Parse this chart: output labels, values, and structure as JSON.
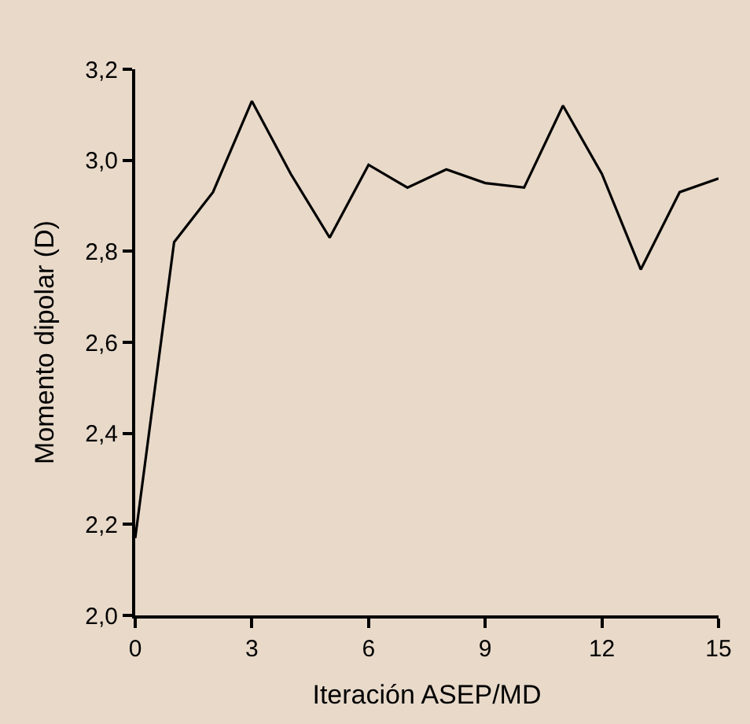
{
  "chart_data": {
    "type": "line",
    "xlabel": "Iteración ASEP/MD",
    "ylabel": "Momento dipolar (D)",
    "x": [
      0,
      1,
      2,
      3,
      4,
      5,
      6,
      7,
      8,
      9,
      10,
      11,
      12,
      13,
      14,
      15
    ],
    "series": [
      {
        "color": "#000000",
        "values": [
          2.17,
          2.82,
          2.93,
          3.13,
          2.97,
          2.83,
          2.99,
          2.94,
          2.98,
          2.95,
          2.94,
          3.12,
          2.97,
          2.76,
          2.93,
          2.96
        ]
      }
    ],
    "xlim": [
      0,
      15
    ],
    "xticks": [
      0,
      3,
      6,
      9,
      12,
      15
    ],
    "ylim": [
      2.0,
      3.2
    ],
    "yticks": [
      {
        "value": 2.0,
        "label": "2,0"
      },
      {
        "value": 2.2,
        "label": "2,2"
      },
      {
        "value": 2.4,
        "label": "2,4"
      },
      {
        "value": 2.6,
        "label": "2,6"
      },
      {
        "value": 2.8,
        "label": "2,8"
      },
      {
        "value": 3.0,
        "label": "3,0"
      },
      {
        "value": 3.2,
        "label": "3,2"
      }
    ],
    "line_style": "solid"
  }
}
